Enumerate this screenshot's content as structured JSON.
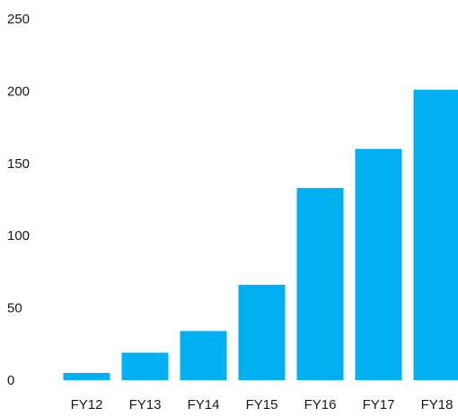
{
  "chart_data": {
    "type": "bar",
    "title": "",
    "xlabel": "",
    "ylabel": "",
    "categories": [
      "FY12",
      "FY13",
      "FY14",
      "FY15",
      "FY16",
      "FY17",
      "FY18"
    ],
    "values": [
      5,
      19,
      34,
      66,
      133,
      160,
      201
    ],
    "ylim": [
      0,
      250
    ],
    "yticks": [
      "0",
      "50",
      "100",
      "150",
      "200",
      "250"
    ],
    "grid": false,
    "legend": "none",
    "bar_color": "#00b0f0"
  }
}
